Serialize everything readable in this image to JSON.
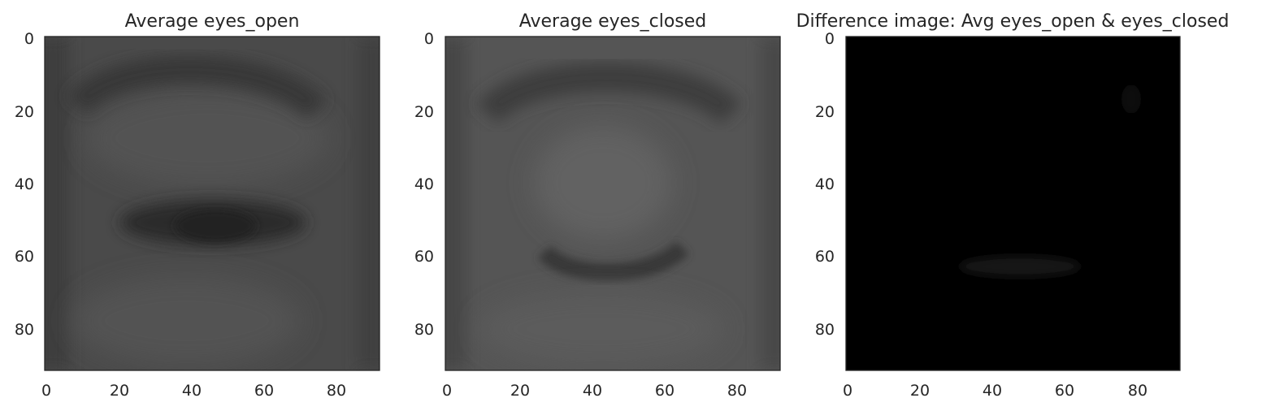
{
  "figure": {
    "background": "#ffffff",
    "text_color": "#262626",
    "frame_color": "#262626"
  },
  "chart_data": [
    {
      "type": "heatmap",
      "title": "Average eyes_open",
      "colormap": "gray",
      "image_size": [
        92,
        92
      ],
      "xlim": [
        0,
        91
      ],
      "ylim": [
        91,
        0
      ],
      "x_ticks": [
        0,
        20,
        40,
        60,
        80
      ],
      "y_ticks": [
        0,
        20,
        40,
        60,
        80
      ],
      "grid": false,
      "regions": {
        "background_level": 0.29,
        "features": [
          {
            "kind": "brow",
            "x_range": [
              10,
              75
            ],
            "y_center": 17,
            "level": 0.24
          },
          {
            "kind": "eye",
            "x_center": 46,
            "y_center": 51,
            "width": 44,
            "height": 12,
            "level": 0.18
          }
        ]
      }
    },
    {
      "type": "heatmap",
      "title": "Average eyes_closed",
      "colormap": "gray",
      "image_size": [
        92,
        92
      ],
      "xlim": [
        0,
        91
      ],
      "ylim": [
        91,
        0
      ],
      "x_ticks": [
        0,
        20,
        40,
        60,
        80
      ],
      "y_ticks": [
        0,
        20,
        40,
        60,
        80
      ],
      "grid": false,
      "regions": {
        "background_level": 0.33,
        "features": [
          {
            "kind": "brow",
            "x_range": [
              12,
              78
            ],
            "y_center": 17,
            "level": 0.25
          },
          {
            "kind": "lid-highlight",
            "x_center": 44,
            "y_center": 40,
            "width": 40,
            "height": 30,
            "level": 0.38
          },
          {
            "kind": "lash-line",
            "x_center": 48,
            "y_center": 63,
            "width": 40,
            "height": 8,
            "level": 0.24
          }
        ]
      }
    },
    {
      "type": "heatmap",
      "title": "Difference image: Avg eyes_open & eyes_closed",
      "colormap": "gray",
      "image_size": [
        92,
        92
      ],
      "xlim": [
        0,
        91
      ],
      "ylim": [
        91,
        0
      ],
      "x_ticks": [
        0,
        20,
        40,
        60,
        80
      ],
      "y_ticks": [
        0,
        20,
        40,
        60,
        80
      ],
      "grid": false,
      "regions": {
        "background_level": 0.0,
        "features": [
          {
            "kind": "lash-line",
            "x_center": 47,
            "y_center": 63,
            "width": 34,
            "height": 5,
            "level": 0.04
          },
          {
            "kind": "corner-spot",
            "x_center": 79,
            "y_center": 17,
            "width": 6,
            "height": 8,
            "level": 0.03
          }
        ]
      }
    }
  ]
}
